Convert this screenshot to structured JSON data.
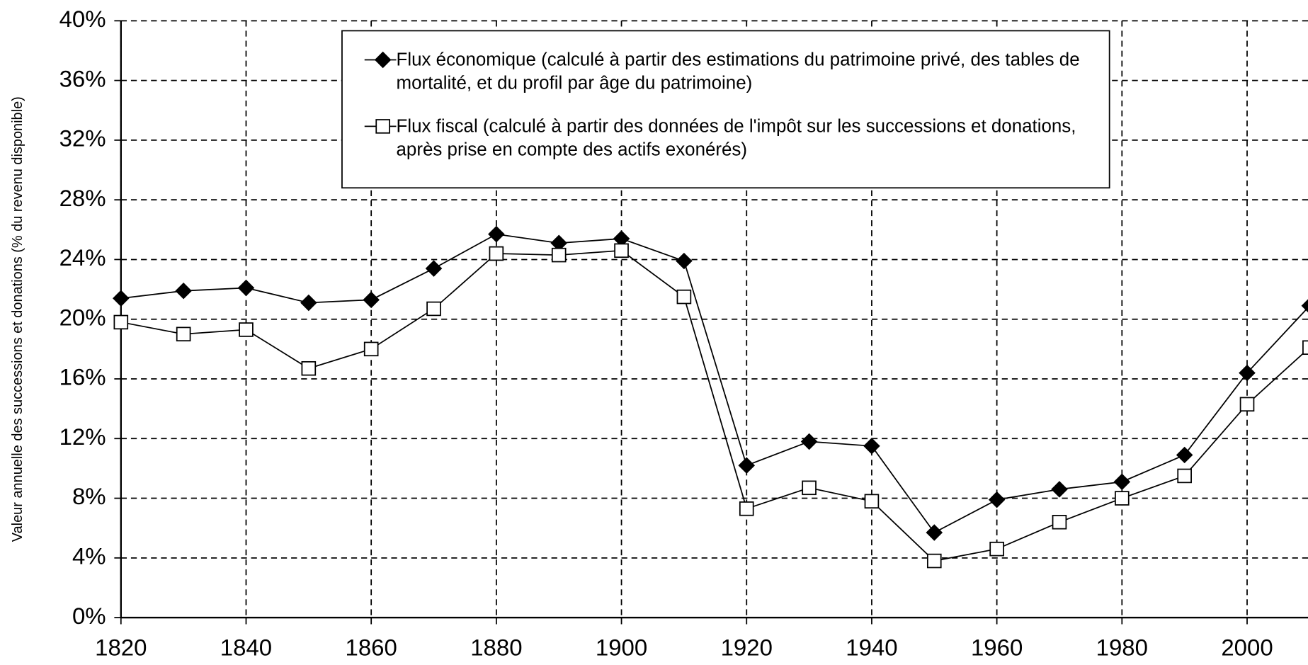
{
  "chart_data": {
    "type": "line",
    "y_label": "Valeur annuelle des successions et donations (% du revenu disponible)",
    "x": [
      1820,
      1830,
      1840,
      1850,
      1860,
      1870,
      1880,
      1890,
      1900,
      1910,
      1920,
      1930,
      1940,
      1950,
      1960,
      1970,
      1980,
      1990,
      2000,
      2010
    ],
    "series": [
      {
        "name": "Flux économique (calculé à partir des estimations du patrimoine privé, des tables de mortalité, et du profil par âge du patrimoine)",
        "color": "#000000",
        "marker": "diamond",
        "values": [
          21.4,
          21.9,
          22.1,
          21.1,
          21.3,
          23.4,
          25.7,
          25.1,
          25.4,
          23.9,
          10.2,
          11.8,
          11.5,
          5.7,
          7.9,
          8.6,
          9.1,
          10.9,
          16.4,
          20.9
        ]
      },
      {
        "name": "Flux fiscal (calculé à partir des données de l'impôt sur les successions et donations, après prise en compte des actifs exonérés)",
        "color": "#000000",
        "marker": "square",
        "values": [
          19.8,
          19.0,
          19.3,
          16.7,
          18.0,
          20.7,
          24.4,
          24.3,
          24.6,
          21.5,
          7.3,
          8.7,
          7.8,
          3.8,
          4.6,
          6.4,
          8.0,
          9.5,
          14.3,
          18.1
        ]
      }
    ],
    "xlim": [
      1820,
      2010
    ],
    "xticks": [
      1820,
      1840,
      1860,
      1880,
      1900,
      1920,
      1940,
      1960,
      1980,
      2000
    ],
    "ylim": [
      0,
      40
    ],
    "yticks": [
      {
        "value": 0,
        "label": "0%"
      },
      {
        "value": 4,
        "label": "4%"
      },
      {
        "value": 8,
        "label": "8%"
      },
      {
        "value": 12,
        "label": "12%"
      },
      {
        "value": 16,
        "label": "16%"
      },
      {
        "value": 20,
        "label": "20%"
      },
      {
        "value": 24,
        "label": "24%"
      },
      {
        "value": 28,
        "label": "28%"
      },
      {
        "value": 32,
        "label": "32%"
      },
      {
        "value": 36,
        "label": "36%"
      },
      {
        "value": 40,
        "label": "40%"
      }
    ],
    "grid": true,
    "legend": "top"
  }
}
